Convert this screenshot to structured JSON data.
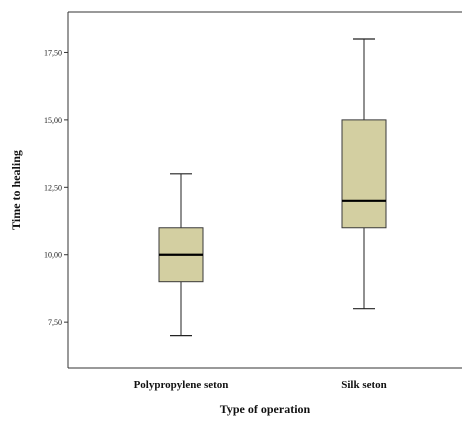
{
  "chart_data": {
    "type": "boxplot",
    "xlabel": "Type of operation",
    "ylabel": "Time to healing",
    "ylim": [
      5.8,
      19.0
    ],
    "yticks": [
      7.5,
      10.0,
      12.5,
      15.0,
      17.5
    ],
    "ytick_labels": [
      "7,50",
      "10,00",
      "12,50",
      "15,00",
      "17,50"
    ],
    "grid": false,
    "legend": "none",
    "categories": [
      "Polypropylene seton",
      "Silk seton"
    ],
    "boxes": [
      {
        "category": "Polypropylene seton",
        "min": 7,
        "q1": 9,
        "median": 10,
        "q3": 11,
        "max": 13
      },
      {
        "category": "Silk seton",
        "min": 8,
        "q1": 11,
        "median": 12,
        "q3": 15,
        "max": 18
      }
    ],
    "colors": {
      "box_fill": "#d3cfa1",
      "box_stroke": "#3a3a3a",
      "median": "#000000",
      "axis": "#333333"
    }
  }
}
